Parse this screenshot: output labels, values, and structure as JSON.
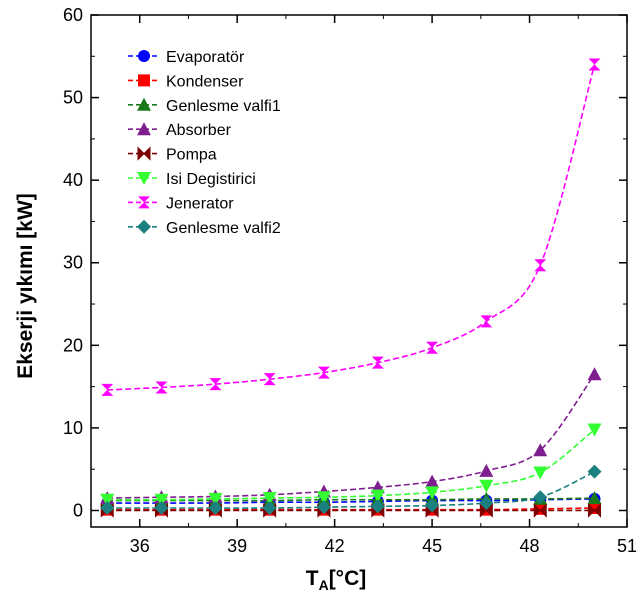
{
  "chart_data": {
    "type": "line",
    "xlabel": "T",
    "xlabel_sub": "A",
    "xlabel_unit": "[°C]",
    "ylabel": "Ekserji yıkımı [kW]",
    "xlim": [
      34.5,
      51
    ],
    "ylim": [
      -2,
      60
    ],
    "xticks": [
      36,
      39,
      42,
      45,
      48,
      51
    ],
    "yticks": [
      0,
      10,
      20,
      30,
      40,
      50,
      60
    ],
    "grid": false,
    "legend_position": "top-left",
    "x": [
      35,
      36.67,
      38.33,
      40,
      41.67,
      43.33,
      45,
      46.67,
      48.33,
      50
    ],
    "series": [
      {
        "name": "Evaporatör",
        "color": "#0000ff",
        "marker": "circle",
        "values": [
          0.9,
          0.9,
          0.9,
          1.0,
          1.0,
          1.1,
          1.2,
          1.2,
          1.3,
          1.4
        ]
      },
      {
        "name": "Kondenser",
        "color": "#ff0000",
        "marker": "square",
        "values": [
          0.1,
          0.1,
          0.1,
          0.1,
          0.1,
          0.1,
          0.1,
          0.1,
          0.2,
          0.3
        ]
      },
      {
        "name": "Genlesme valfi1",
        "color": "#1a7a1a",
        "marker": "triangle-up",
        "values": [
          1.2,
          1.2,
          1.2,
          1.2,
          1.3,
          1.3,
          1.3,
          1.4,
          1.4,
          1.5
        ]
      },
      {
        "name": "Absorber",
        "color": "#7f1f8f",
        "marker": "triangle-up",
        "values": [
          1.5,
          1.6,
          1.7,
          1.9,
          2.3,
          2.8,
          3.5,
          4.8,
          7.3,
          16.5
        ]
      },
      {
        "name": "Pompa",
        "color": "#7f0000",
        "marker": "bowtie",
        "values": [
          0.0,
          0.0,
          0.0,
          0.0,
          0.0,
          0.0,
          0.0,
          0.0,
          0.0,
          0.0
        ]
      },
      {
        "name": "Isi Degistirici",
        "color": "#33ff33",
        "marker": "triangle-down",
        "values": [
          1.3,
          1.3,
          1.4,
          1.5,
          1.6,
          1.8,
          2.2,
          3.0,
          4.6,
          9.8
        ]
      },
      {
        "name": "Jenerator",
        "color": "#ff00ff",
        "marker": "hourglass",
        "values": [
          14.6,
          14.9,
          15.3,
          15.9,
          16.7,
          17.9,
          19.7,
          22.9,
          29.7,
          54.0
        ]
      },
      {
        "name": "Genlesme valfi2",
        "color": "#1a8080",
        "marker": "diamond",
        "values": [
          0.3,
          0.3,
          0.3,
          0.3,
          0.4,
          0.5,
          0.6,
          0.9,
          1.6,
          4.7
        ]
      }
    ]
  }
}
